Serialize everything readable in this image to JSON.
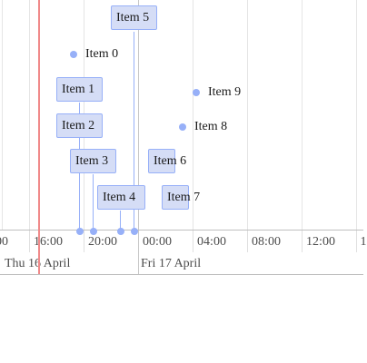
{
  "axis": {
    "minor_labels": [
      "00",
      "16:00",
      "20:00",
      "00:00",
      "04:00",
      "08:00",
      "12:00",
      "1"
    ],
    "major_labels": [
      "Thu 16 April",
      "Fri 17 April"
    ]
  },
  "items": {
    "range": [
      "Item 1",
      "Item 2",
      "Item 3",
      "Item 4",
      "Item 5",
      "Item 6",
      "Item 7"
    ],
    "point": [
      "Item 0",
      "Item 9",
      "Item 8"
    ]
  },
  "colors": {
    "item_fill": "#d5ddf6",
    "item_border": "#97b0f8",
    "current_time": "#f08a8a"
  }
}
